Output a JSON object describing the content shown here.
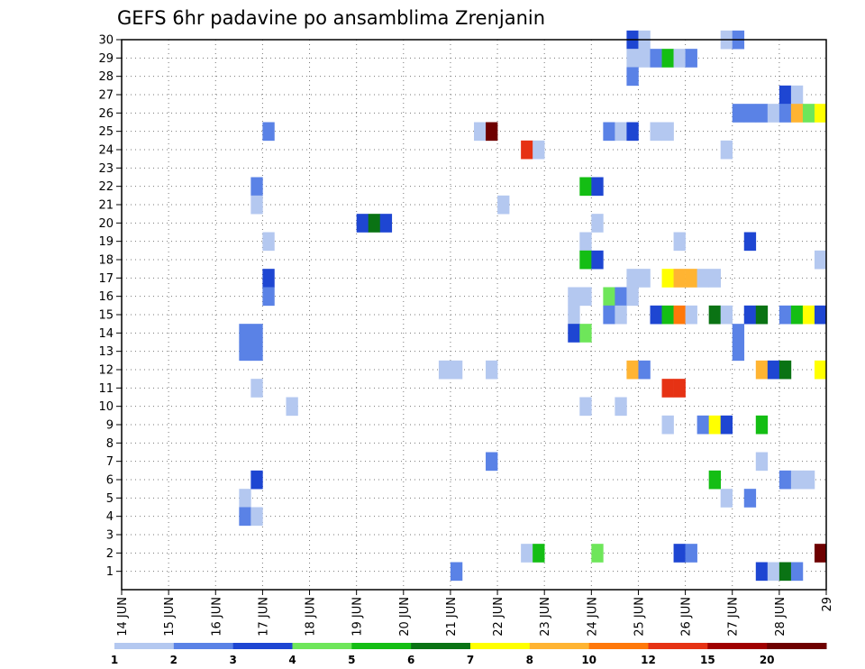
{
  "chart_data": {
    "type": "heatmap",
    "title": "GEFS 6hr padavine po ansamblima Zrenjanin",
    "xlabel": "",
    "ylabel": "",
    "x_ticks": [
      "14 JUN",
      "15 JUN",
      "16 JUN",
      "17 JUN",
      "18 JUN",
      "19 JUN",
      "20 JUN",
      "21 JUN",
      "22 JUN",
      "23 JUN",
      "24 JUN",
      "25 JUN",
      "26 JUN",
      "27 JUN",
      "28 JUN",
      "29"
    ],
    "y_ticks": [
      1,
      2,
      3,
      4,
      5,
      6,
      7,
      8,
      9,
      10,
      11,
      12,
      13,
      14,
      15,
      16,
      17,
      18,
      19,
      20,
      21,
      22,
      23,
      24,
      25,
      26,
      27,
      28,
      29,
      30
    ],
    "x_range_days": [
      14,
      29
    ],
    "y_range": [
      0,
      30
    ],
    "grid": "dotted",
    "colorbar": {
      "labels": [
        "1",
        "2",
        "3",
        "4",
        "5",
        "6",
        "7",
        "8",
        "10",
        "12",
        "15",
        "20"
      ],
      "colors": [
        "#b4c8f0",
        "#5a82e6",
        "#1e46d2",
        "#6ee65a",
        "#14be14",
        "#0a7314",
        "#ffff00",
        "#ffb432",
        "#ff780a",
        "#e63214",
        "#a00000",
        "#6e0000"
      ]
    },
    "cell_duration_days": 0.25,
    "cells": [
      {
        "ens": 30,
        "day": 24.75,
        "c": 2
      },
      {
        "ens": 30,
        "day": 25.0,
        "c": 0
      },
      {
        "ens": 30,
        "day": 26.75,
        "c": 0
      },
      {
        "ens": 30,
        "day": 27.0,
        "c": 1
      },
      {
        "ens": 29,
        "day": 24.75,
        "c": 0
      },
      {
        "ens": 29,
        "day": 25.0,
        "c": 0
      },
      {
        "ens": 29,
        "day": 25.25,
        "c": 1
      },
      {
        "ens": 29,
        "day": 25.5,
        "c": 4
      },
      {
        "ens": 29,
        "day": 25.75,
        "c": 0
      },
      {
        "ens": 29,
        "day": 26.0,
        "c": 1
      },
      {
        "ens": 28,
        "day": 24.75,
        "c": 1
      },
      {
        "ens": 27,
        "day": 28.0,
        "c": 2
      },
      {
        "ens": 27,
        "day": 28.25,
        "c": 0
      },
      {
        "ens": 26,
        "day": 27.0,
        "c": 1
      },
      {
        "ens": 26,
        "day": 27.25,
        "c": 1
      },
      {
        "ens": 26,
        "day": 27.5,
        "c": 1
      },
      {
        "ens": 26,
        "day": 27.75,
        "c": 0
      },
      {
        "ens": 26,
        "day": 28.0,
        "c": 1
      },
      {
        "ens": 26,
        "day": 28.25,
        "c": 7
      },
      {
        "ens": 26,
        "day": 28.5,
        "c": 3
      },
      {
        "ens": 26,
        "day": 28.75,
        "c": 6
      },
      {
        "ens": 25,
        "day": 17.0,
        "c": 1
      },
      {
        "ens": 25,
        "day": 21.5,
        "c": 0
      },
      {
        "ens": 25,
        "day": 21.75,
        "c": 11
      },
      {
        "ens": 25,
        "day": 24.25,
        "c": 1
      },
      {
        "ens": 25,
        "day": 24.5,
        "c": 0
      },
      {
        "ens": 25,
        "day": 24.75,
        "c": 2
      },
      {
        "ens": 25,
        "day": 25.25,
        "c": 0
      },
      {
        "ens": 25,
        "day": 25.5,
        "c": 0
      },
      {
        "ens": 24,
        "day": 22.5,
        "c": 9
      },
      {
        "ens": 24,
        "day": 22.75,
        "c": 0
      },
      {
        "ens": 24,
        "day": 26.75,
        "c": 0
      },
      {
        "ens": 22,
        "day": 16.75,
        "c": 1
      },
      {
        "ens": 22,
        "day": 23.75,
        "c": 4
      },
      {
        "ens": 22,
        "day": 24.0,
        "c": 2
      },
      {
        "ens": 21,
        "day": 16.75,
        "c": 0
      },
      {
        "ens": 21,
        "day": 22.0,
        "c": 0
      },
      {
        "ens": 20,
        "day": 19.0,
        "c": 2
      },
      {
        "ens": 20,
        "day": 19.25,
        "c": 5
      },
      {
        "ens": 20,
        "day": 19.5,
        "c": 2
      },
      {
        "ens": 20,
        "day": 24.0,
        "c": 0
      },
      {
        "ens": 19,
        "day": 17.0,
        "c": 0
      },
      {
        "ens": 19,
        "day": 23.75,
        "c": 0
      },
      {
        "ens": 19,
        "day": 25.75,
        "c": 0
      },
      {
        "ens": 19,
        "day": 27.25,
        "c": 2
      },
      {
        "ens": 18,
        "day": 23.75,
        "c": 4
      },
      {
        "ens": 18,
        "day": 24.0,
        "c": 2
      },
      {
        "ens": 18,
        "day": 28.75,
        "c": 0
      },
      {
        "ens": 17,
        "day": 17.0,
        "c": 2
      },
      {
        "ens": 17,
        "day": 24.75,
        "c": 0
      },
      {
        "ens": 17,
        "day": 25.0,
        "c": 0
      },
      {
        "ens": 17,
        "day": 25.5,
        "c": 6
      },
      {
        "ens": 17,
        "day": 25.75,
        "c": 7
      },
      {
        "ens": 17,
        "day": 26.0,
        "c": 7
      },
      {
        "ens": 17,
        "day": 26.25,
        "c": 0
      },
      {
        "ens": 17,
        "day": 26.5,
        "c": 0
      },
      {
        "ens": 16,
        "day": 17.0,
        "c": 1
      },
      {
        "ens": 16,
        "day": 23.5,
        "c": 0
      },
      {
        "ens": 16,
        "day": 23.75,
        "c": 0
      },
      {
        "ens": 16,
        "day": 24.25,
        "c": 3
      },
      {
        "ens": 16,
        "day": 24.5,
        "c": 1
      },
      {
        "ens": 16,
        "day": 24.75,
        "c": 0
      },
      {
        "ens": 15,
        "day": 23.5,
        "c": 0
      },
      {
        "ens": 15,
        "day": 24.25,
        "c": 1
      },
      {
        "ens": 15,
        "day": 24.5,
        "c": 0
      },
      {
        "ens": 15,
        "day": 25.25,
        "c": 2
      },
      {
        "ens": 15,
        "day": 25.5,
        "c": 4
      },
      {
        "ens": 15,
        "day": 25.75,
        "c": 8
      },
      {
        "ens": 15,
        "day": 26.0,
        "c": 0
      },
      {
        "ens": 15,
        "day": 26.5,
        "c": 5
      },
      {
        "ens": 15,
        "day": 26.75,
        "c": 0
      },
      {
        "ens": 15,
        "day": 27.25,
        "c": 2
      },
      {
        "ens": 15,
        "day": 27.5,
        "c": 5
      },
      {
        "ens": 15,
        "day": 28.0,
        "c": 1
      },
      {
        "ens": 15,
        "day": 28.25,
        "c": 4
      },
      {
        "ens": 15,
        "day": 28.5,
        "c": 6
      },
      {
        "ens": 15,
        "day": 28.75,
        "c": 2
      },
      {
        "ens": 14,
        "day": 16.5,
        "c": 1
      },
      {
        "ens": 14,
        "day": 16.75,
        "c": 1
      },
      {
        "ens": 14,
        "day": 23.5,
        "c": 2
      },
      {
        "ens": 14,
        "day": 23.75,
        "c": 3
      },
      {
        "ens": 14,
        "day": 27.0,
        "c": 1
      },
      {
        "ens": 13,
        "day": 16.5,
        "c": 1
      },
      {
        "ens": 13,
        "day": 16.75,
        "c": 1
      },
      {
        "ens": 13,
        "day": 27.0,
        "c": 1
      },
      {
        "ens": 12,
        "day": 20.75,
        "c": 0
      },
      {
        "ens": 12,
        "day": 21.0,
        "c": 0
      },
      {
        "ens": 12,
        "day": 21.75,
        "c": 0
      },
      {
        "ens": 12,
        "day": 24.75,
        "c": 7
      },
      {
        "ens": 12,
        "day": 25.0,
        "c": 1
      },
      {
        "ens": 12,
        "day": 27.5,
        "c": 7
      },
      {
        "ens": 12,
        "day": 27.75,
        "c": 2
      },
      {
        "ens": 12,
        "day": 28.0,
        "c": 5
      },
      {
        "ens": 12,
        "day": 28.75,
        "c": 6
      },
      {
        "ens": 11,
        "day": 16.75,
        "c": 0
      },
      {
        "ens": 11,
        "day": 25.5,
        "c": 9
      },
      {
        "ens": 11,
        "day": 25.75,
        "c": 9
      },
      {
        "ens": 10,
        "day": 17.5,
        "c": 0
      },
      {
        "ens": 10,
        "day": 23.75,
        "c": 0
      },
      {
        "ens": 10,
        "day": 24.5,
        "c": 0
      },
      {
        "ens": 9,
        "day": 25.5,
        "c": 0
      },
      {
        "ens": 9,
        "day": 26.25,
        "c": 1
      },
      {
        "ens": 9,
        "day": 26.5,
        "c": 6
      },
      {
        "ens": 9,
        "day": 26.75,
        "c": 2
      },
      {
        "ens": 9,
        "day": 27.5,
        "c": 4
      },
      {
        "ens": 7,
        "day": 21.75,
        "c": 1
      },
      {
        "ens": 7,
        "day": 27.5,
        "c": 0
      },
      {
        "ens": 6,
        "day": 16.75,
        "c": 2
      },
      {
        "ens": 6,
        "day": 26.5,
        "c": 4
      },
      {
        "ens": 6,
        "day": 28.0,
        "c": 1
      },
      {
        "ens": 6,
        "day": 28.25,
        "c": 0
      },
      {
        "ens": 6,
        "day": 28.5,
        "c": 0
      },
      {
        "ens": 5,
        "day": 16.5,
        "c": 0
      },
      {
        "ens": 5,
        "day": 26.75,
        "c": 0
      },
      {
        "ens": 5,
        "day": 27.25,
        "c": 1
      },
      {
        "ens": 4,
        "day": 16.5,
        "c": 1
      },
      {
        "ens": 4,
        "day": 16.75,
        "c": 0
      },
      {
        "ens": 2,
        "day": 22.5,
        "c": 0
      },
      {
        "ens": 2,
        "day": 22.75,
        "c": 4
      },
      {
        "ens": 2,
        "day": 24.0,
        "c": 3
      },
      {
        "ens": 2,
        "day": 25.75,
        "c": 2
      },
      {
        "ens": 2,
        "day": 26.0,
        "c": 1
      },
      {
        "ens": 2,
        "day": 28.75,
        "c": 11
      },
      {
        "ens": 1,
        "day": 21.0,
        "c": 1
      },
      {
        "ens": 1,
        "day": 27.5,
        "c": 2
      },
      {
        "ens": 1,
        "day": 27.75,
        "c": 0
      },
      {
        "ens": 1,
        "day": 28.0,
        "c": 5
      },
      {
        "ens": 1,
        "day": 28.25,
        "c": 1
      }
    ]
  }
}
